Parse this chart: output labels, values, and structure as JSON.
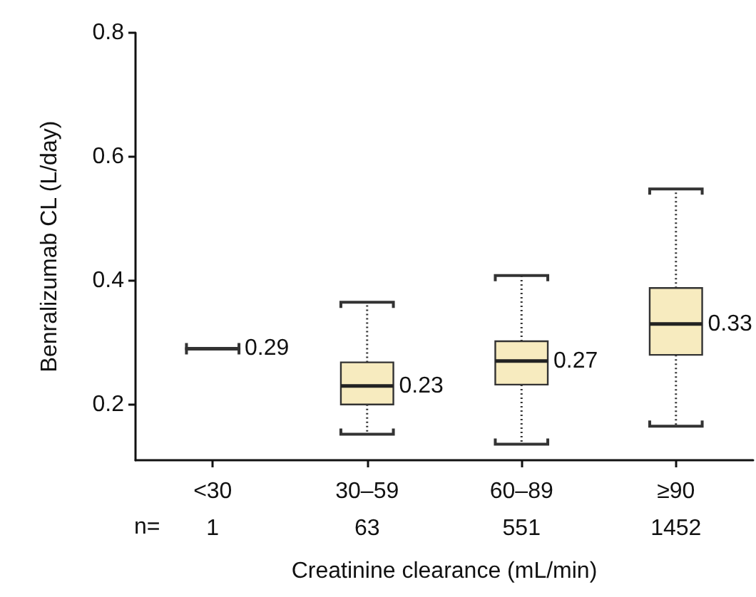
{
  "chart_data": {
    "type": "box",
    "xlabel": "Creatinine clearance (mL/min)",
    "ylabel": "Benralizumab CL (L/day)",
    "categories": [
      "<30",
      "30–59",
      "60–89",
      "≥90"
    ],
    "boxes": [
      {
        "low": 0.29,
        "q1": 0.29,
        "median": 0.29,
        "q3": 0.29,
        "high": 0.29
      },
      {
        "low": 0.152,
        "q1": 0.2,
        "median": 0.23,
        "q3": 0.268,
        "high": 0.365
      },
      {
        "low": 0.136,
        "q1": 0.232,
        "median": 0.27,
        "q3": 0.302,
        "high": 0.408
      },
      {
        "low": 0.165,
        "q1": 0.28,
        "median": 0.33,
        "q3": 0.388,
        "high": 0.548
      }
    ],
    "colors": [
      "#333333",
      "#e8c547",
      "#e8c547",
      "#e8c547"
    ],
    "line_style": "dotted",
    "value_labels": [
      "0.29",
      "0.23",
      "0.27",
      "0.33"
    ],
    "annotations": [
      "n=",
      "1",
      "63",
      "551",
      "1452"
    ],
    "ylim": [
      0.11,
      0.8
    ],
    "yticks": [
      0.2,
      0.4,
      0.6,
      0.8
    ],
    "grid": false
  }
}
